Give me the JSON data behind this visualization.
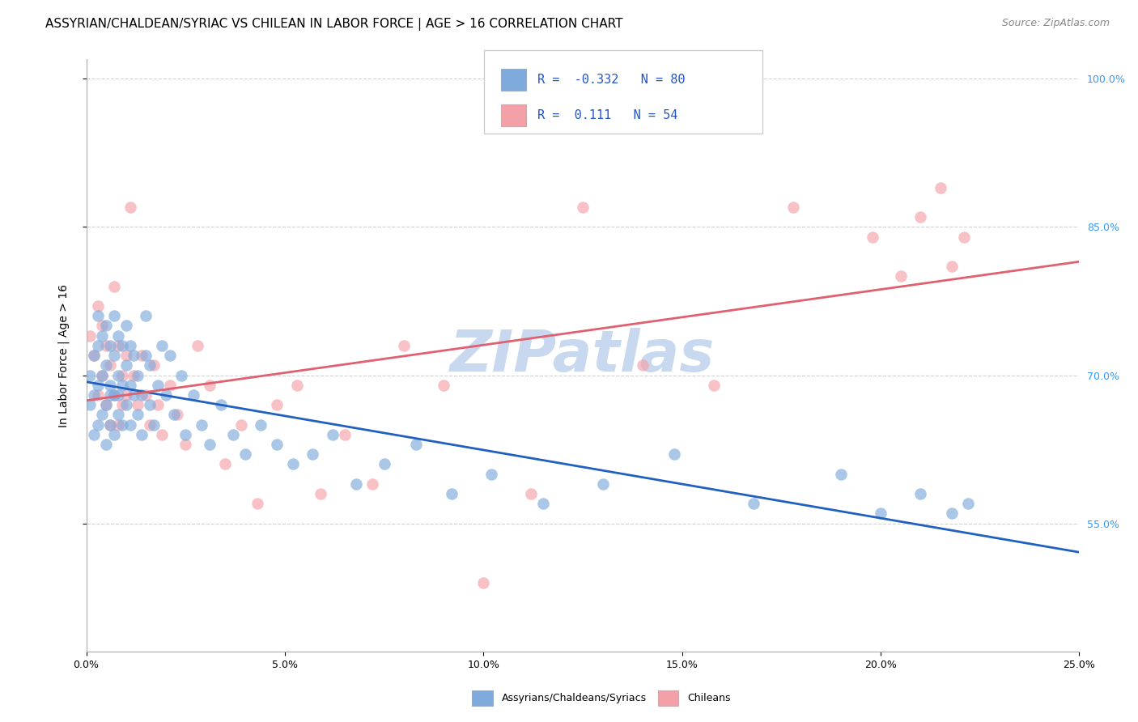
{
  "title": "ASSYRIAN/CHALDEAN/SYRIAC VS CHILEAN IN LABOR FORCE | AGE > 16 CORRELATION CHART",
  "source_text": "Source: ZipAtlas.com",
  "ylabel": "In Labor Force | Age > 16",
  "xlim": [
    0.0,
    0.25
  ],
  "ylim": [
    0.42,
    1.02
  ],
  "xticks": [
    0.0,
    0.05,
    0.1,
    0.15,
    0.2,
    0.25
  ],
  "xticklabels": [
    "0.0%",
    "5.0%",
    "10.0%",
    "15.0%",
    "20.0%",
    "25.0%"
  ],
  "yticks": [
    0.55,
    0.7,
    0.85,
    1.0
  ],
  "yticklabels": [
    "55.0%",
    "70.0%",
    "85.0%",
    "100.0%"
  ],
  "blue_color": "#7faadc",
  "pink_color": "#f4a0a8",
  "blue_line_color": "#2060c0",
  "pink_line_color": "#e06070",
  "watermark_text": "ZIPatlas",
  "watermark_color": "#c8d8ee",
  "legend_label_blue": "Assyrians/Chaldeans/Syriacs",
  "legend_label_pink": "Chileans",
  "blue_R": -0.332,
  "blue_N": 80,
  "pink_R": 0.111,
  "pink_N": 54,
  "blue_scatter_x": [
    0.001,
    0.001,
    0.002,
    0.002,
    0.002,
    0.003,
    0.003,
    0.003,
    0.003,
    0.004,
    0.004,
    0.004,
    0.005,
    0.005,
    0.005,
    0.005,
    0.006,
    0.006,
    0.006,
    0.006,
    0.007,
    0.007,
    0.007,
    0.007,
    0.008,
    0.008,
    0.008,
    0.008,
    0.009,
    0.009,
    0.009,
    0.01,
    0.01,
    0.01,
    0.011,
    0.011,
    0.011,
    0.012,
    0.012,
    0.013,
    0.013,
    0.014,
    0.014,
    0.015,
    0.015,
    0.016,
    0.016,
    0.017,
    0.018,
    0.019,
    0.02,
    0.021,
    0.022,
    0.024,
    0.025,
    0.027,
    0.029,
    0.031,
    0.034,
    0.037,
    0.04,
    0.044,
    0.048,
    0.052,
    0.057,
    0.062,
    0.068,
    0.075,
    0.083,
    0.092,
    0.102,
    0.115,
    0.13,
    0.148,
    0.168,
    0.19,
    0.2,
    0.21,
    0.218,
    0.222
  ],
  "blue_scatter_y": [
    0.67,
    0.7,
    0.64,
    0.68,
    0.72,
    0.65,
    0.69,
    0.73,
    0.76,
    0.66,
    0.7,
    0.74,
    0.63,
    0.67,
    0.71,
    0.75,
    0.65,
    0.69,
    0.73,
    0.68,
    0.64,
    0.68,
    0.72,
    0.76,
    0.66,
    0.7,
    0.74,
    0.68,
    0.65,
    0.69,
    0.73,
    0.67,
    0.71,
    0.75,
    0.65,
    0.69,
    0.73,
    0.68,
    0.72,
    0.66,
    0.7,
    0.64,
    0.68,
    0.72,
    0.76,
    0.67,
    0.71,
    0.65,
    0.69,
    0.73,
    0.68,
    0.72,
    0.66,
    0.7,
    0.64,
    0.68,
    0.65,
    0.63,
    0.67,
    0.64,
    0.62,
    0.65,
    0.63,
    0.61,
    0.62,
    0.64,
    0.59,
    0.61,
    0.63,
    0.58,
    0.6,
    0.57,
    0.59,
    0.62,
    0.57,
    0.6,
    0.56,
    0.58,
    0.56,
    0.57
  ],
  "pink_scatter_x": [
    0.001,
    0.002,
    0.003,
    0.003,
    0.004,
    0.004,
    0.005,
    0.005,
    0.006,
    0.006,
    0.007,
    0.007,
    0.008,
    0.008,
    0.009,
    0.009,
    0.01,
    0.01,
    0.011,
    0.012,
    0.013,
    0.014,
    0.015,
    0.016,
    0.017,
    0.018,
    0.019,
    0.021,
    0.023,
    0.025,
    0.028,
    0.031,
    0.035,
    0.039,
    0.043,
    0.048,
    0.053,
    0.059,
    0.065,
    0.072,
    0.08,
    0.09,
    0.1,
    0.112,
    0.125,
    0.14,
    0.158,
    0.178,
    0.198,
    0.205,
    0.21,
    0.215,
    0.218,
    0.221
  ],
  "pink_scatter_y": [
    0.74,
    0.72,
    0.77,
    0.68,
    0.75,
    0.7,
    0.73,
    0.67,
    0.71,
    0.65,
    0.79,
    0.68,
    0.73,
    0.65,
    0.7,
    0.67,
    0.72,
    0.68,
    0.87,
    0.7,
    0.67,
    0.72,
    0.68,
    0.65,
    0.71,
    0.67,
    0.64,
    0.69,
    0.66,
    0.63,
    0.73,
    0.69,
    0.61,
    0.65,
    0.57,
    0.67,
    0.69,
    0.58,
    0.64,
    0.59,
    0.73,
    0.69,
    0.49,
    0.58,
    0.87,
    0.71,
    0.69,
    0.87,
    0.84,
    0.8,
    0.86,
    0.89,
    0.81,
    0.84
  ],
  "title_fontsize": 11,
  "axis_label_fontsize": 10,
  "tick_fontsize": 9,
  "source_fontsize": 9
}
